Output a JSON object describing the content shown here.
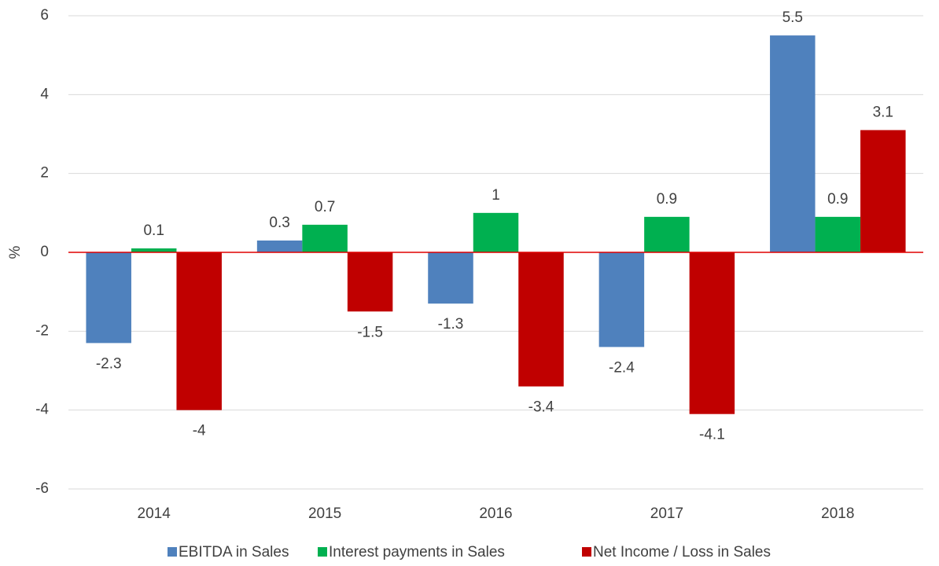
{
  "chart_data": {
    "type": "bar",
    "ylabel": "%",
    "categories": [
      "2014",
      "2015",
      "2016",
      "2017",
      "2018"
    ],
    "series": [
      {
        "name": "EBITDA in Sales",
        "color": "#4f81bd",
        "values": [
          -2.3,
          0.3,
          -1.3,
          -2.4,
          5.5
        ]
      },
      {
        "name": "Interest payments in Sales",
        "color": "#00b050",
        "values": [
          0.1,
          0.7,
          1,
          0.9,
          0.9
        ]
      },
      {
        "name": "Net Income / Loss in Sales",
        "color": "#c00000",
        "values": [
          -4,
          -1.5,
          -3.4,
          -4.1,
          3.1
        ]
      }
    ],
    "ylim": [
      -6,
      6
    ],
    "yticks": [
      -6,
      -4,
      -2,
      0,
      2,
      4,
      6
    ],
    "grid": true,
    "legend": "bottom"
  }
}
